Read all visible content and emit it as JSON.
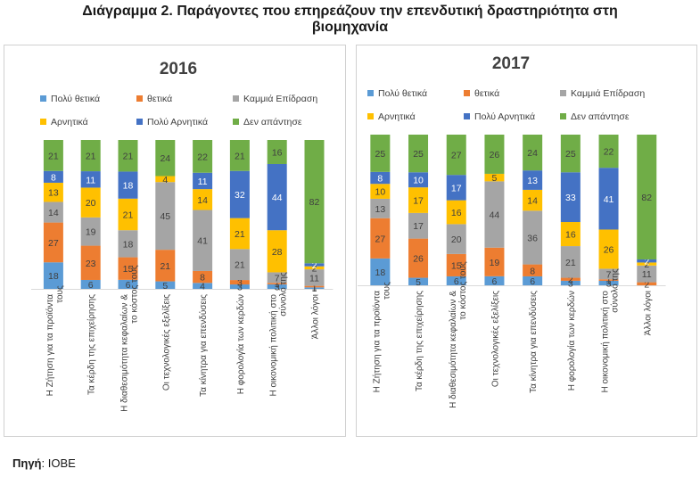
{
  "header": {
    "title_line1": "Διάγραμμα 2. Παράγοντες που επηρεάζουν την επενδυτική δραστηριότητα στη",
    "title_line2": "βιομηχανία"
  },
  "footer": {
    "source_label": "Πηγή",
    "source_value": "ΙΟΒΕ"
  },
  "colors": {
    "very_positive": "#5b9bd5",
    "positive": "#ed7d31",
    "no_effect": "#a5a5a5",
    "negative": "#ffc000",
    "very_negative": "#4472c4",
    "no_answer": "#70ad47"
  },
  "chart_data": [
    {
      "type": "bar",
      "stacked": true,
      "stack_mode": "percent",
      "title": "2016",
      "legend_position": "top",
      "categories": [
        "Η Ζήτηση για τα προϊόντα τους",
        "Τα κέρδη της επιχείρησης",
        "Η διαθεσιμότητα κεφαλαίων & το κόστος τους",
        "Οι τεχνολογικές εξελίξεις",
        "Τα κίνητρα για επενδύσεις",
        "Η φορολογία των κερδών",
        "Η οικονομική πολιτική στο σύνολό της",
        "Άλλοι λόγοι"
      ],
      "series": [
        {
          "name": "Πολύ θετικά",
          "color": "#5b9bd5",
          "values": [
            18,
            6,
            6,
            5,
            4,
            3,
            3,
            1
          ]
        },
        {
          "name": "θετικά",
          "color": "#ed7d31",
          "values": [
            27,
            23,
            15,
            21,
            8,
            3,
            1,
            1
          ]
        },
        {
          "name": "Καμμιά Επίδραση",
          "color": "#a5a5a5",
          "values": [
            14,
            19,
            18,
            45,
            41,
            21,
            7,
            11
          ]
        },
        {
          "name": "Αρνητικά",
          "color": "#ffc000",
          "values": [
            13,
            20,
            21,
            4,
            14,
            21,
            28,
            2
          ]
        },
        {
          "name": "Πολύ Αρνητικά",
          "color": "#4472c4",
          "values": [
            8,
            11,
            18,
            0,
            11,
            32,
            44,
            2
          ]
        },
        {
          "name": "Δεν απάντησε",
          "color": "#70ad47",
          "values": [
            21,
            21,
            21,
            24,
            22,
            21,
            16,
            82
          ]
        }
      ],
      "grid": false
    },
    {
      "type": "bar",
      "stacked": true,
      "stack_mode": "percent",
      "title": "2017",
      "legend_position": "top",
      "categories": [
        "Η Ζήτηση για τα προϊόντα τους",
        "Τα κέρδη της επιχείρησης",
        "Η διαθεσιμότητα κεφαλαίων & το κόστος τους",
        "Οι τεχνολογικές εξελίξεις",
        "Τα κίνητρα για επενδύσεις",
        "Η φορολογία των κερδών",
        "Η οικονομική πολιτική στο σύνολό της",
        "Άλλοι λόγοι"
      ],
      "series": [
        {
          "name": "Πολύ θετικά",
          "color": "#5b9bd5",
          "values": [
            18,
            5,
            6,
            6,
            6,
            3,
            3,
            0
          ]
        },
        {
          "name": "θετικά",
          "color": "#ed7d31",
          "values": [
            27,
            26,
            15,
            19,
            8,
            2,
            1,
            2
          ]
        },
        {
          "name": "Καμμιά Επίδραση",
          "color": "#a5a5a5",
          "values": [
            13,
            17,
            20,
            44,
            36,
            21,
            7,
            11
          ]
        },
        {
          "name": "Αρνητικά",
          "color": "#ffc000",
          "values": [
            10,
            17,
            16,
            5,
            14,
            16,
            26,
            2
          ]
        },
        {
          "name": "Πολύ Αρνητικά",
          "color": "#4472c4",
          "values": [
            8,
            10,
            17,
            0,
            13,
            33,
            41,
            2
          ]
        },
        {
          "name": "Δεν απάντησε",
          "color": "#70ad47",
          "values": [
            25,
            25,
            27,
            26,
            24,
            25,
            22,
            82
          ]
        }
      ],
      "grid": false
    }
  ]
}
